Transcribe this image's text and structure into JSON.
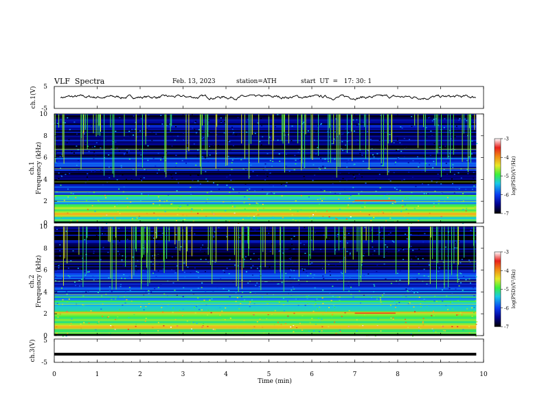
{
  "header": {
    "title": "VLF  Spectra",
    "date": "Feb. 13, 2023",
    "station": "station=ATH",
    "start": "start  UT  =   17: 30: 1"
  },
  "chart_data": [
    {
      "type": "line",
      "ylabel": "ch.1(V)",
      "ylim": [
        -5,
        5
      ],
      "yticks": [
        "5",
        "-5"
      ],
      "xlim": [
        0,
        10
      ],
      "description_level": 0.2,
      "series": [
        {
          "values_range": [
            -0.8,
            0.8
          ]
        }
      ]
    },
    {
      "type": "heatmap",
      "ylabel_line1": "ch.1",
      "ylabel_line2": "Frequency (kHz)",
      "ylim": [
        0,
        10
      ],
      "yticks": [
        "0",
        "2",
        "4",
        "6",
        "8",
        "10"
      ],
      "xlim": [
        0,
        9.83
      ],
      "colorbar": {
        "label": "log(PSD)(V²/Hz)",
        "range": [
          -7,
          -3
        ],
        "ticks": [
          "-3",
          "-4",
          "-5",
          "-6",
          "-7"
        ]
      },
      "bands": [
        {
          "f": [
            0,
            0.6
          ],
          "level": -5.0
        },
        {
          "f": [
            0.6,
            1.0
          ],
          "level": -4.2
        },
        {
          "f": [
            1.0,
            1.6
          ],
          "level": -5.0
        },
        {
          "f": [
            1.6,
            2.6
          ],
          "level": -5.3
        },
        {
          "f": [
            2.6,
            3.6
          ],
          "level": -6.0
        },
        {
          "f": [
            3.6,
            4.8
          ],
          "level": -6.9
        },
        {
          "f": [
            4.8,
            6.0
          ],
          "level": -6.1
        },
        {
          "f": [
            6.0,
            10.0
          ],
          "level": -6.6
        }
      ]
    },
    {
      "type": "heatmap",
      "ylabel_line1": "ch.2",
      "ylabel_line2": "Frequency (kHz)",
      "ylim": [
        0,
        10
      ],
      "yticks": [
        "0",
        "2",
        "4",
        "6",
        "8",
        "10"
      ],
      "xlim": [
        0,
        9.83
      ],
      "colorbar": {
        "label": "log(PSD)(V²/Hz)",
        "range": [
          -7,
          -3
        ],
        "ticks": [
          "-3",
          "-4",
          "-5",
          "-6",
          "-7"
        ]
      },
      "bands": [
        {
          "f": [
            0,
            0.6
          ],
          "level": -5.2
        },
        {
          "f": [
            0.6,
            1.0
          ],
          "level": -4.0
        },
        {
          "f": [
            1.0,
            1.8
          ],
          "level": -5.0
        },
        {
          "f": [
            1.8,
            2.3
          ],
          "level": -4.6
        },
        {
          "f": [
            2.3,
            3.6
          ],
          "level": -5.4
        },
        {
          "f": [
            3.6,
            4.8
          ],
          "level": -6.0
        },
        {
          "f": [
            4.8,
            6.0
          ],
          "level": -6.2
        },
        {
          "f": [
            6.0,
            10.0
          ],
          "level": -6.7
        }
      ]
    },
    {
      "type": "line",
      "ylabel": "ch.3(V)",
      "ylim": [
        -5,
        5
      ],
      "yticks": [
        "5",
        "-5"
      ],
      "xlim": [
        0,
        10
      ],
      "series": [
        {
          "value": -1.5
        }
      ]
    }
  ],
  "xaxis": {
    "label": "Time  (min)",
    "ticks": [
      "0",
      "1",
      "2",
      "3",
      "4",
      "5",
      "6",
      "7",
      "8",
      "9",
      "10"
    ]
  },
  "colors": {
    "black": "#000000",
    "blue": "#0a2ad8",
    "cyan": "#18c8e8",
    "green": "#3cf03c",
    "red": "#e8201c"
  }
}
